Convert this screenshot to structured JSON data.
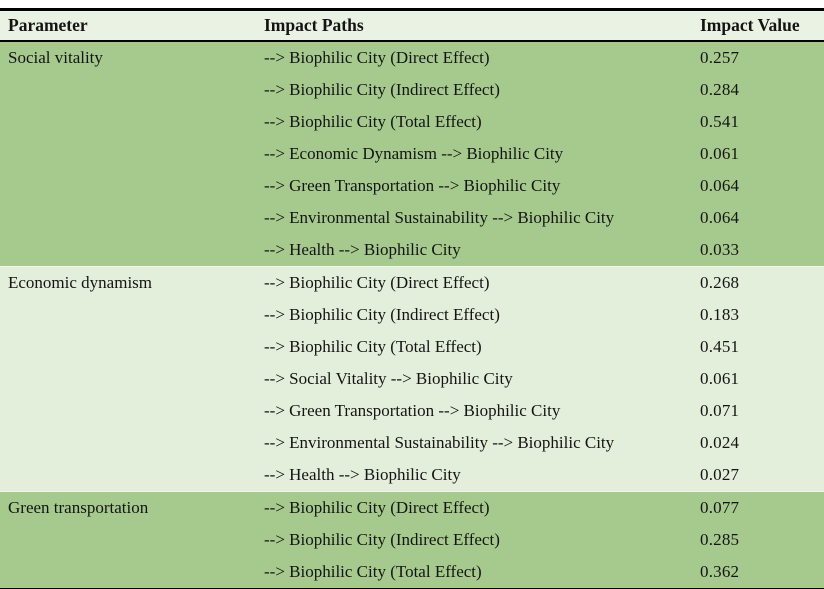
{
  "chart_data": {
    "type": "table",
    "columns": [
      "Parameter",
      "Impact Paths",
      "Impact Value"
    ],
    "groups": [
      {
        "parameter": "Social vitality",
        "rows": [
          {
            "path": "--> Biophilic City (Direct Effect)",
            "value": "0.257"
          },
          {
            "path": "--> Biophilic City (Indirect Effect)",
            "value": "0.284"
          },
          {
            "path": "--> Biophilic City (Total Effect)",
            "value": "0.541"
          },
          {
            "path": "--> Economic Dynamism --> Biophilic City",
            "value": "0.061"
          },
          {
            "path": "--> Green Transportation --> Biophilic City",
            "value": "0.064"
          },
          {
            "path": "--> Environmental Sustainability --> Biophilic City",
            "value": "0.064"
          },
          {
            "path": "--> Health --> Biophilic City",
            "value": "0.033"
          }
        ]
      },
      {
        "parameter": "Economic dynamism",
        "rows": [
          {
            "path": "--> Biophilic City (Direct Effect)",
            "value": "0.268"
          },
          {
            "path": "--> Biophilic City (Indirect Effect)",
            "value": "0.183"
          },
          {
            "path": "--> Biophilic City (Total Effect)",
            "value": "0.451"
          },
          {
            "path": "--> Social Vitality --> Biophilic City",
            "value": "0.061"
          },
          {
            "path": "--> Green Transportation --> Biophilic City",
            "value": "0.071"
          },
          {
            "path": "--> Environmental Sustainability --> Biophilic City",
            "value": "0.024"
          },
          {
            "path": "--> Health --> Biophilic City",
            "value": "0.027"
          }
        ]
      },
      {
        "parameter": "Green transportation",
        "rows": [
          {
            "path": "--> Biophilic City (Direct Effect)",
            "value": "0.077"
          },
          {
            "path": "--> Biophilic City (Indirect Effect)",
            "value": "0.285"
          },
          {
            "path": "--> Biophilic City (Total Effect)",
            "value": "0.362"
          }
        ]
      }
    ],
    "colors": {
      "header_bg": "#eaf2e4",
      "group_dark_bg": "#a6ca8d",
      "group_light_bg": "#e4efdb",
      "rule": "#000000",
      "text": "#141414"
    },
    "layout": {
      "grid": "off",
      "legend": "none"
    }
  }
}
